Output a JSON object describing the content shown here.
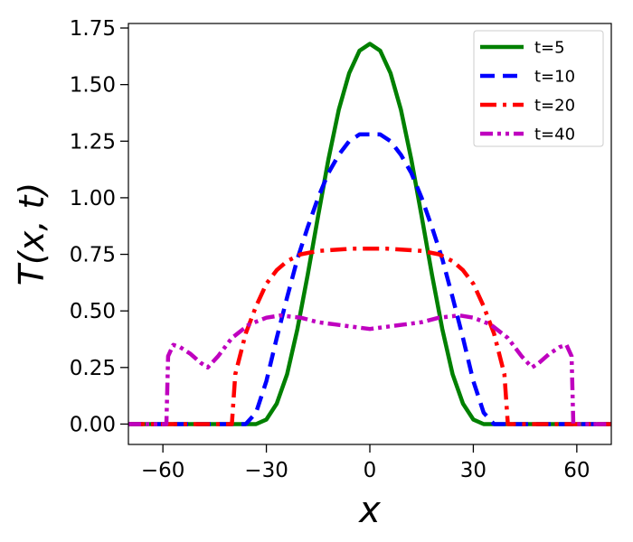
{
  "chart_data": {
    "type": "line",
    "xlabel": "x",
    "ylabel": "T(x, t)",
    "xlim": [
      -70,
      70
    ],
    "ylim": [
      -0.09,
      1.77
    ],
    "xticks": [
      -60,
      -30,
      0,
      30,
      60
    ],
    "xtick_labels": [
      "−60",
      "−30",
      "0",
      "30",
      "60"
    ],
    "yticks": [
      0,
      0.25,
      0.5,
      0.75,
      1.0,
      1.25,
      1.5,
      1.75
    ],
    "ytick_labels": [
      "0.00",
      "0.25",
      "0.50",
      "0.75",
      "1.00",
      "1.25",
      "1.50",
      "1.75"
    ],
    "grid": false,
    "legend": {
      "placement": "top-right"
    },
    "series": [
      {
        "name": "t=5",
        "color": "#008000",
        "dash": "solid",
        "x": [
          -70,
          -33,
          -30,
          -27,
          -24,
          -21,
          -18,
          -15,
          -12,
          -9,
          -6,
          -3,
          0,
          3,
          6,
          9,
          12,
          15,
          18,
          21,
          24,
          27,
          30,
          33,
          70
        ],
        "y": [
          0,
          0,
          0.02,
          0.09,
          0.22,
          0.42,
          0.66,
          0.92,
          1.17,
          1.39,
          1.55,
          1.65,
          1.68,
          1.65,
          1.55,
          1.39,
          1.17,
          0.92,
          0.66,
          0.42,
          0.22,
          0.09,
          0.02,
          0,
          0
        ]
      },
      {
        "name": "t=10",
        "color": "#0000ff",
        "dash": "dashed",
        "x": [
          -70,
          -36,
          -33,
          -30,
          -27,
          -24,
          -21,
          -18,
          -15,
          -12,
          -9,
          -6,
          -3,
          0,
          3,
          6,
          9,
          12,
          15,
          18,
          21,
          24,
          27,
          30,
          33,
          36,
          70
        ],
        "y": [
          0,
          0,
          0.05,
          0.19,
          0.38,
          0.56,
          0.73,
          0.87,
          1.0,
          1.11,
          1.19,
          1.25,
          1.28,
          1.28,
          1.28,
          1.25,
          1.19,
          1.11,
          1.0,
          0.87,
          0.73,
          0.56,
          0.38,
          0.19,
          0.05,
          0,
          0
        ]
      },
      {
        "name": "t=20",
        "color": "#ff0000",
        "dash": "dashdot",
        "x": [
          -70,
          -40,
          -39,
          -36,
          -33,
          -30,
          -27,
          -24,
          -20,
          -15,
          -10,
          -5,
          0,
          5,
          10,
          15,
          20,
          24,
          27,
          30,
          33,
          36,
          39,
          40,
          70
        ],
        "y": [
          0,
          0,
          0.22,
          0.4,
          0.52,
          0.62,
          0.68,
          0.72,
          0.75,
          0.765,
          0.77,
          0.775,
          0.775,
          0.775,
          0.77,
          0.765,
          0.75,
          0.72,
          0.68,
          0.62,
          0.52,
          0.4,
          0.22,
          0,
          0
        ]
      },
      {
        "name": "t=40",
        "color": "#bf00bf",
        "dash": "dashdotdot",
        "x": [
          -70,
          -59,
          -58.5,
          -57,
          -55,
          -52,
          -49,
          -47,
          -44,
          -40,
          -35,
          -30,
          -26,
          -20,
          -15,
          -10,
          -5,
          0,
          5,
          10,
          15,
          20,
          26,
          30,
          35,
          40,
          44,
          47,
          49,
          52,
          55,
          57,
          58.5,
          59,
          70
        ],
        "y": [
          0,
          0,
          0.3,
          0.35,
          0.34,
          0.31,
          0.27,
          0.25,
          0.3,
          0.38,
          0.44,
          0.47,
          0.48,
          0.47,
          0.45,
          0.44,
          0.43,
          0.42,
          0.43,
          0.44,
          0.45,
          0.47,
          0.48,
          0.47,
          0.44,
          0.38,
          0.3,
          0.25,
          0.27,
          0.31,
          0.34,
          0.35,
          0.3,
          0,
          0
        ]
      }
    ]
  }
}
